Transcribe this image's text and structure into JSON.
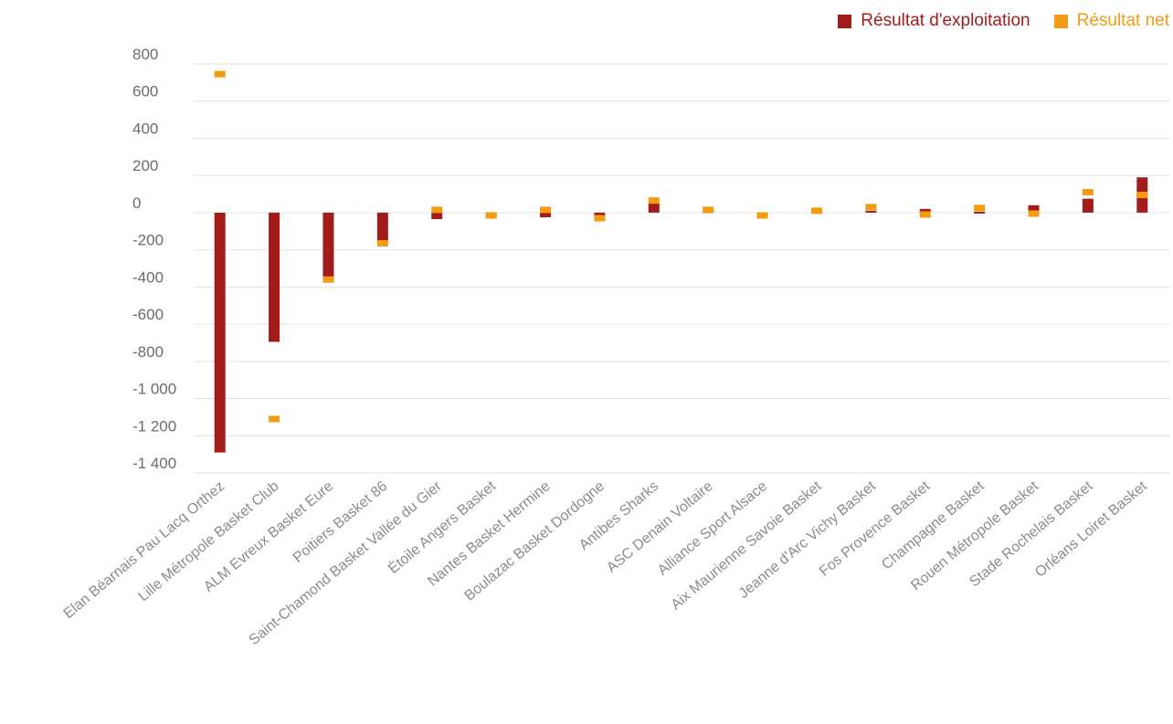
{
  "chart_data": {
    "type": "bar",
    "title": "",
    "xlabel": "",
    "ylabel": "",
    "ylim": [
      -1400,
      800
    ],
    "yticks": [
      800,
      600,
      400,
      200,
      0,
      -200,
      -400,
      -600,
      -800,
      -1000,
      -1200,
      -1400
    ],
    "ytick_labels": [
      "800",
      "600",
      "400",
      "200",
      "0",
      "-200",
      "-400",
      "-600",
      "-800",
      "-1 000",
      "-1 200",
      "-1 400"
    ],
    "grid": true,
    "legend_position": "top-right",
    "categories": [
      "Elan Béarnais Pau Lacq Orthez",
      "Lille Métropole Basket Club",
      "ALM Evreux Basket Eure",
      "Poitiers Basket 86",
      "Saint-Chamond Basket Vallée du Gier",
      "Étoile Angers Basket",
      "Nantes Basket Hermine",
      "Boulazac Basket Dordogne",
      "Antibes Sharks",
      "ASC Denain Voltaire",
      "Alliance Sport Alsace",
      "Aix Maurienne Savoie Basket",
      "Jeanne d'Arc Vichy Basket",
      "Fos Provence Basket",
      "Champagne Basket",
      "Rouen Métropole Basket",
      "Stade Rochelais Basket",
      "Orléans Loiret Basket"
    ],
    "series": [
      {
        "name": "Résultat d'exploitation",
        "color": "#a31c1c",
        "style": "bar",
        "values": [
          -1290,
          -695,
          -355,
          -150,
          -35,
          -20,
          -25,
          -20,
          55,
          8,
          -5,
          5,
          10,
          20,
          5,
          40,
          75,
          190
        ]
      },
      {
        "name": "Résultat net",
        "color": "#f39c12",
        "style": "marker",
        "values": [
          745,
          -1110,
          -360,
          -165,
          15,
          -15,
          15,
          -30,
          65,
          15,
          -15,
          10,
          30,
          -10,
          25,
          -5,
          110,
          95
        ]
      }
    ]
  }
}
